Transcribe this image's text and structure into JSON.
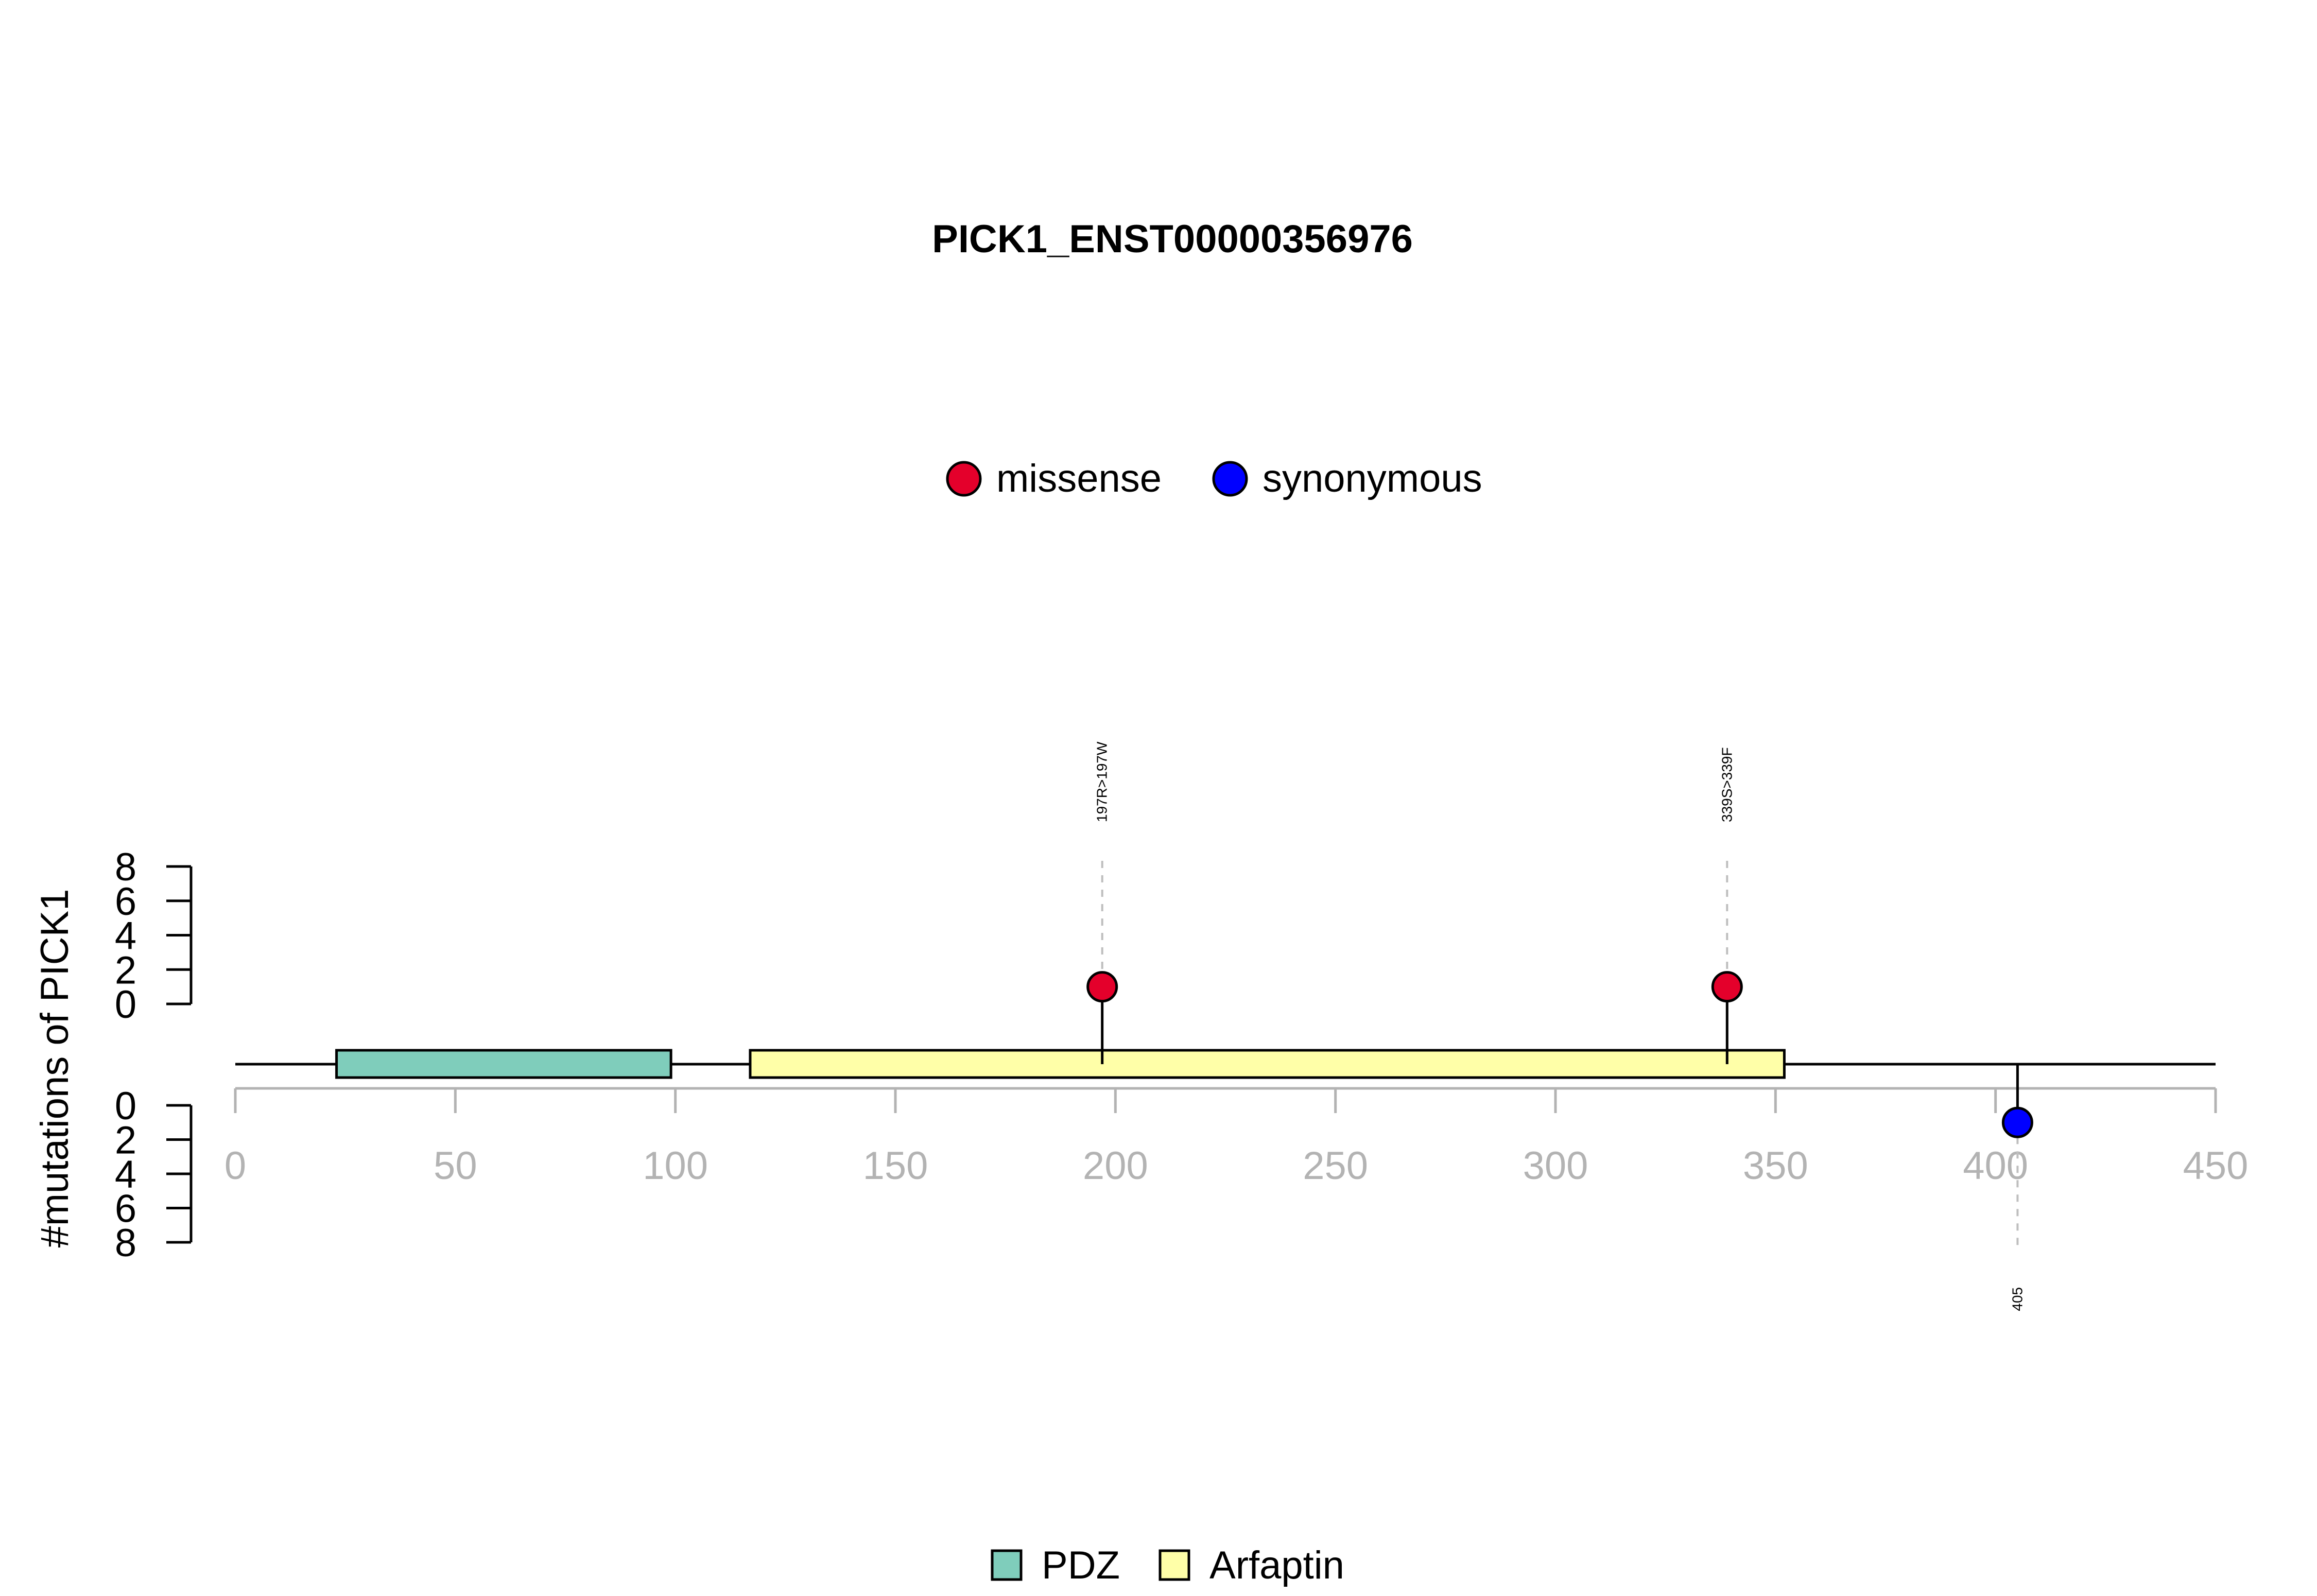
{
  "chart_data": {
    "type": "lollipop",
    "title": "PICK1_ENST00000356976",
    "ylabel": "#mutations of PICK1",
    "xlim": [
      0,
      450
    ],
    "x_ticks": [
      0,
      50,
      100,
      150,
      200,
      250,
      300,
      350,
      400,
      450
    ],
    "y_ticks": [
      0,
      2,
      4,
      6,
      8
    ],
    "ylim": [
      0,
      8
    ],
    "protein_length": 450,
    "legend_mutation_types": [
      {
        "label": "missense",
        "color": "#E4002B"
      },
      {
        "label": "synonymous",
        "color": "#0000FF"
      }
    ],
    "legend_domains": [
      {
        "label": "PDZ",
        "color": "#7FCDBB"
      },
      {
        "label": "Arfaptin",
        "color": "#FFFFA8"
      }
    ],
    "domains": [
      {
        "name": "PDZ",
        "start": 23,
        "end": 99,
        "color": "#7FCDBB"
      },
      {
        "name": "Arfaptin",
        "start": 117,
        "end": 352,
        "color": "#FFFFA8"
      }
    ],
    "mutations": [
      {
        "position": 197,
        "count": 1,
        "type": "missense",
        "label": "197R>197W",
        "side": "top",
        "color": "#E4002B"
      },
      {
        "position": 339,
        "count": 1,
        "type": "missense",
        "label": "339S>339F",
        "side": "top",
        "color": "#E4002B"
      },
      {
        "position": 405,
        "count": 1,
        "type": "synonymous",
        "label": "405",
        "side": "bottom",
        "color": "#0000FF"
      }
    ],
    "colors": {
      "axis_gray": "#B3B3B3",
      "guide_gray": "#BEBEBE",
      "text": "#000000"
    }
  }
}
